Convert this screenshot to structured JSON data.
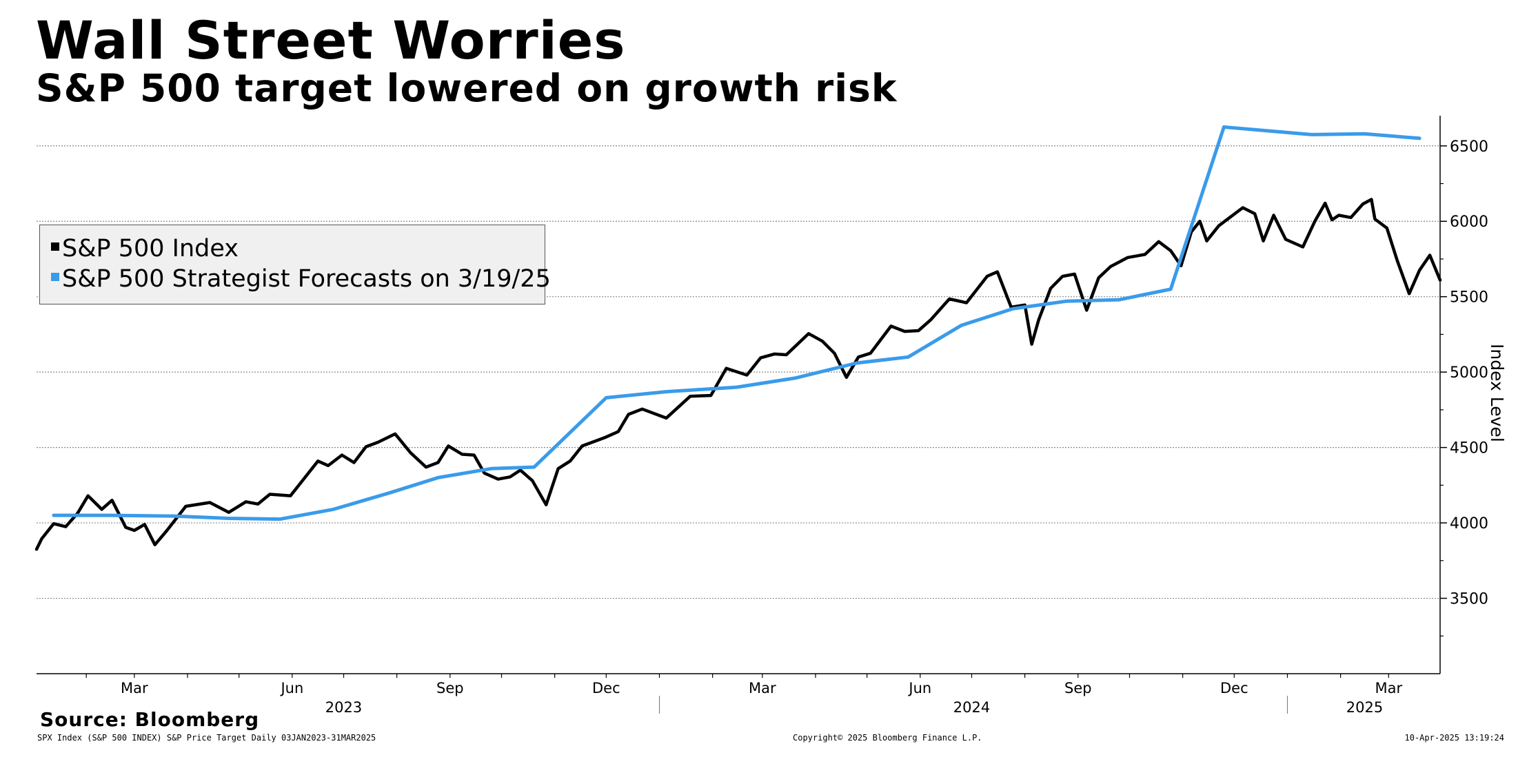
{
  "header": {
    "title": "Wall Street Worries",
    "subtitle": "S&P 500 target lowered on growth risk"
  },
  "footer": {
    "source": "Source: Bloomberg",
    "left_note": "SPX Index (S&P 500 INDEX) S&P Price Target  Daily 03JAN2023-31MAR2025",
    "copyright": "Copyright© 2025 Bloomberg Finance L.P.",
    "timestamp": "10-Apr-2025 13:19:24"
  },
  "chart_data": {
    "type": "line",
    "title": "Wall Street Worries",
    "subtitle": "S&P 500 target lowered on growth risk",
    "ylabel": "Index Level",
    "ylim": [
      3000,
      6700
    ],
    "yticks": [
      3500,
      4000,
      4500,
      5000,
      5500,
      6000,
      6500
    ],
    "xlim": [
      "2023-01-03",
      "2025-03-31"
    ],
    "x_month_ticks": [
      {
        "label": "Mar",
        "date": "2023-03-01"
      },
      {
        "label": "Jun",
        "date": "2023-06-01"
      },
      {
        "label": "Sep",
        "date": "2023-09-01"
      },
      {
        "label": "Dec",
        "date": "2023-12-01"
      },
      {
        "label": "Mar",
        "date": "2024-03-01"
      },
      {
        "label": "Jun",
        "date": "2024-06-01"
      },
      {
        "label": "Sep",
        "date": "2024-09-01"
      },
      {
        "label": "Dec",
        "date": "2024-12-01"
      },
      {
        "label": "Mar",
        "date": "2025-03-01"
      }
    ],
    "x_year_labels": [
      "2023",
      "2024",
      "2025"
    ],
    "grid": true,
    "legend_position": "left-middle",
    "series": [
      {
        "name": "S&P 500 Index",
        "color": "#000000",
        "points": [
          [
            "2023-01-03",
            3825
          ],
          [
            "2023-01-06",
            3895
          ],
          [
            "2023-01-13",
            3995
          ],
          [
            "2023-01-20",
            3975
          ],
          [
            "2023-01-27",
            4065
          ],
          [
            "2023-02-02",
            4180
          ],
          [
            "2023-02-10",
            4090
          ],
          [
            "2023-02-16",
            4150
          ],
          [
            "2023-02-24",
            3970
          ],
          [
            "2023-03-01",
            3950
          ],
          [
            "2023-03-07",
            3990
          ],
          [
            "2023-03-13",
            3855
          ],
          [
            "2023-03-20",
            3950
          ],
          [
            "2023-03-31",
            4110
          ],
          [
            "2023-04-14",
            4135
          ],
          [
            "2023-04-25",
            4070
          ],
          [
            "2023-05-05",
            4140
          ],
          [
            "2023-05-12",
            4125
          ],
          [
            "2023-05-19",
            4190
          ],
          [
            "2023-05-31",
            4180
          ],
          [
            "2023-06-08",
            4295
          ],
          [
            "2023-06-16",
            4410
          ],
          [
            "2023-06-22",
            4380
          ],
          [
            "2023-06-30",
            4450
          ],
          [
            "2023-07-07",
            4400
          ],
          [
            "2023-07-14",
            4505
          ],
          [
            "2023-07-21",
            4535
          ],
          [
            "2023-07-31",
            4590
          ],
          [
            "2023-08-09",
            4465
          ],
          [
            "2023-08-18",
            4370
          ],
          [
            "2023-08-25",
            4400
          ],
          [
            "2023-08-31",
            4510
          ],
          [
            "2023-09-08",
            4455
          ],
          [
            "2023-09-15",
            4450
          ],
          [
            "2023-09-21",
            4330
          ],
          [
            "2023-09-29",
            4290
          ],
          [
            "2023-10-06",
            4305
          ],
          [
            "2023-10-12",
            4350
          ],
          [
            "2023-10-19",
            4280
          ],
          [
            "2023-10-27",
            4120
          ],
          [
            "2023-11-03",
            4360
          ],
          [
            "2023-11-10",
            4410
          ],
          [
            "2023-11-17",
            4510
          ],
          [
            "2023-11-30",
            4565
          ],
          [
            "2023-12-08",
            4605
          ],
          [
            "2023-12-14",
            4720
          ],
          [
            "2023-12-22",
            4755
          ],
          [
            "2024-01-05",
            4695
          ],
          [
            "2024-01-19",
            4840
          ],
          [
            "2024-01-31",
            4845
          ],
          [
            "2024-02-09",
            5025
          ],
          [
            "2024-02-21",
            4980
          ],
          [
            "2024-02-29",
            5095
          ],
          [
            "2024-03-08",
            5120
          ],
          [
            "2024-03-15",
            5115
          ],
          [
            "2024-03-28",
            5255
          ],
          [
            "2024-04-05",
            5205
          ],
          [
            "2024-04-12",
            5125
          ],
          [
            "2024-04-19",
            4965
          ],
          [
            "2024-04-26",
            5100
          ],
          [
            "2024-05-03",
            5125
          ],
          [
            "2024-05-15",
            5305
          ],
          [
            "2024-05-23",
            5270
          ],
          [
            "2024-05-31",
            5275
          ],
          [
            "2024-06-07",
            5345
          ],
          [
            "2024-06-18",
            5485
          ],
          [
            "2024-06-28",
            5460
          ],
          [
            "2024-07-10",
            5635
          ],
          [
            "2024-07-16",
            5665
          ],
          [
            "2024-07-24",
            5430
          ],
          [
            "2024-08-01",
            5445
          ],
          [
            "2024-08-05",
            5185
          ],
          [
            "2024-08-09",
            5345
          ],
          [
            "2024-08-16",
            5555
          ],
          [
            "2024-08-23",
            5635
          ],
          [
            "2024-08-30",
            5650
          ],
          [
            "2024-09-06",
            5410
          ],
          [
            "2024-09-13",
            5625
          ],
          [
            "2024-09-20",
            5700
          ],
          [
            "2024-09-30",
            5760
          ],
          [
            "2024-10-10",
            5780
          ],
          [
            "2024-10-18",
            5865
          ],
          [
            "2024-10-25",
            5805
          ],
          [
            "2024-10-31",
            5705
          ],
          [
            "2024-11-06",
            5930
          ],
          [
            "2024-11-11",
            6000
          ],
          [
            "2024-11-15",
            5870
          ],
          [
            "2024-11-22",
            5970
          ],
          [
            "2024-11-29",
            6030
          ],
          [
            "2024-12-06",
            6090
          ],
          [
            "2024-12-13",
            6050
          ],
          [
            "2024-12-18",
            5870
          ],
          [
            "2024-12-24",
            6040
          ],
          [
            "2024-12-31",
            5880
          ],
          [
            "2025-01-10",
            5830
          ],
          [
            "2025-01-17",
            6000
          ],
          [
            "2025-01-23",
            6120
          ],
          [
            "2025-01-27",
            6010
          ],
          [
            "2025-01-31",
            6040
          ],
          [
            "2025-02-07",
            6025
          ],
          [
            "2025-02-14",
            6115
          ],
          [
            "2025-02-19",
            6145
          ],
          [
            "2025-02-21",
            6015
          ],
          [
            "2025-02-28",
            5955
          ],
          [
            "2025-03-06",
            5740
          ],
          [
            "2025-03-10",
            5615
          ],
          [
            "2025-03-13",
            5520
          ],
          [
            "2025-03-19",
            5675
          ],
          [
            "2025-03-25",
            5775
          ],
          [
            "2025-03-31",
            5610
          ]
        ]
      },
      {
        "name": "S&P 500 Strategist Forecasts on 3/19/25",
        "color": "#3a9bea",
        "points": [
          [
            "2023-01-13",
            4050
          ],
          [
            "2023-02-15",
            4050
          ],
          [
            "2023-03-25",
            4045
          ],
          [
            "2023-04-25",
            4030
          ],
          [
            "2023-05-25",
            4025
          ],
          [
            "2023-06-25",
            4090
          ],
          [
            "2023-07-28",
            4200
          ],
          [
            "2023-08-25",
            4300
          ],
          [
            "2023-09-25",
            4360
          ],
          [
            "2023-10-20",
            4370
          ],
          [
            "2023-12-01",
            4830
          ],
          [
            "2024-01-05",
            4870
          ],
          [
            "2024-02-15",
            4900
          ],
          [
            "2024-03-20",
            4960
          ],
          [
            "2024-04-25",
            5060
          ],
          [
            "2024-05-25",
            5100
          ],
          [
            "2024-06-25",
            5310
          ],
          [
            "2024-07-25",
            5420
          ],
          [
            "2024-08-25",
            5470
          ],
          [
            "2024-09-25",
            5480
          ],
          [
            "2024-10-25",
            5550
          ],
          [
            "2024-11-25",
            6625
          ],
          [
            "2025-01-15",
            6575
          ],
          [
            "2025-02-15",
            6580
          ],
          [
            "2025-03-19",
            6550
          ]
        ]
      }
    ]
  }
}
